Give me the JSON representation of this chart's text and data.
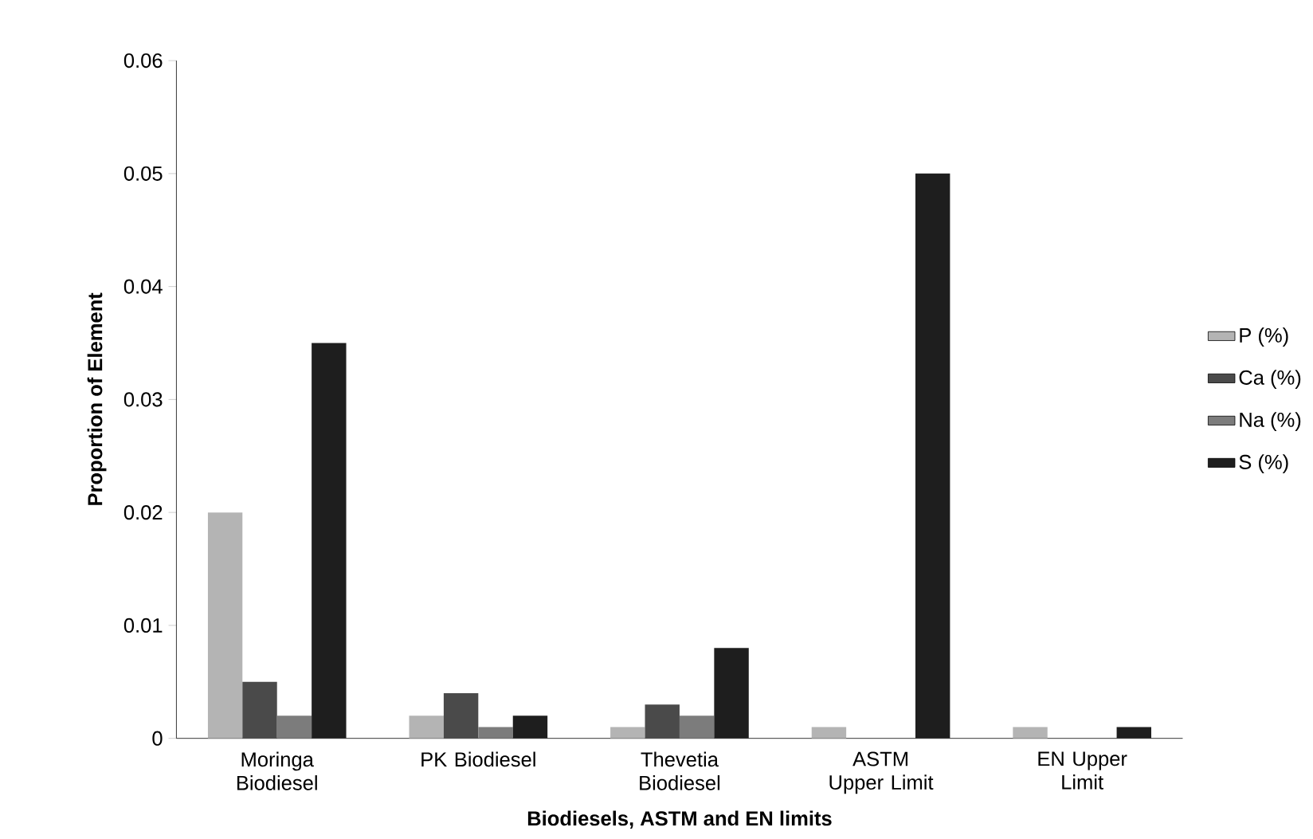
{
  "chart_data": {
    "type": "bar",
    "xlabel": "Biodiesels, ASTM and EN limits",
    "ylabel": "Proportion of Element",
    "categories": [
      "Moringa Biodiesel",
      "PK Biodiesel",
      "Thevetia Biodiesel",
      "ASTM Upper Limit",
      "EN Upper Limit"
    ],
    "series": [
      {
        "name": "P (%)",
        "color": "#b4b4b4",
        "values": [
          0.02,
          0.002,
          0.001,
          0.001,
          0.001
        ]
      },
      {
        "name": "Ca (%)",
        "color": "#4a4a4a",
        "values": [
          0.005,
          0.004,
          0.003,
          null,
          null
        ]
      },
      {
        "name": "Na (%)",
        "color": "#7c7c7c",
        "values": [
          0.002,
          0.001,
          0.002,
          null,
          null
        ]
      },
      {
        "name": "S (%)",
        "color": "#1e1e1e",
        "values": [
          0.035,
          0.002,
          0.008,
          0.05,
          0.001
        ]
      }
    ],
    "ylim": [
      0,
      0.06
    ],
    "yticks": [
      0,
      0.01,
      0.02,
      0.03,
      0.04,
      0.05,
      0.06
    ],
    "grid": false,
    "legend": "right"
  }
}
